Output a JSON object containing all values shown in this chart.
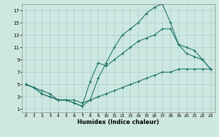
{
  "title": "",
  "xlabel": "Humidex (Indice chaleur)",
  "bg_color": "#cce8e0",
  "grid_color": "#aacccc",
  "line_color": "#1a7068",
  "xlim": [
    -0.5,
    23.5
  ],
  "ylim": [
    0.5,
    18
  ],
  "xticks": [
    0,
    1,
    2,
    3,
    4,
    5,
    6,
    7,
    8,
    9,
    10,
    11,
    12,
    13,
    14,
    15,
    16,
    17,
    18,
    19,
    20,
    21,
    22,
    23
  ],
  "yticks": [
    1,
    3,
    5,
    7,
    9,
    11,
    13,
    15,
    17
  ],
  "line1_x": [
    0,
    1,
    2,
    3,
    4,
    5,
    6,
    7,
    8,
    9,
    10,
    11,
    12,
    13,
    14,
    15,
    16,
    17,
    18,
    19,
    20,
    21,
    22,
    23
  ],
  "line1_y": [
    5,
    4.5,
    4,
    3.5,
    2.5,
    2.5,
    2.5,
    2,
    2.5,
    3,
    3.5,
    4,
    4.5,
    5,
    5.5,
    6,
    6.5,
    7,
    7,
    7.5,
    7.5,
    7.5,
    7.5,
    7.5
  ],
  "line2_x": [
    0,
    1,
    2,
    3,
    4,
    5,
    6,
    7,
    8,
    9,
    10,
    11,
    12,
    13,
    14,
    15,
    16,
    17,
    18,
    19,
    20,
    21,
    22,
    23
  ],
  "line2_y": [
    5,
    4.5,
    3.5,
    3,
    2.5,
    2.5,
    2,
    1.5,
    2.5,
    6,
    8.5,
    11,
    13,
    14,
    15,
    16.5,
    17.5,
    18,
    15,
    11.5,
    10,
    9.5,
    9,
    7.5
  ],
  "line3_x": [
    0,
    1,
    2,
    3,
    4,
    5,
    6,
    7,
    8,
    9,
    10,
    11,
    12,
    13,
    14,
    15,
    16,
    17,
    18,
    19,
    20,
    21,
    22,
    23
  ],
  "line3_y": [
    5,
    4.5,
    3.5,
    3,
    2.5,
    2.5,
    2,
    1.5,
    5.5,
    8.5,
    8,
    9,
    10,
    11,
    12,
    12.5,
    13,
    14,
    14,
    11.5,
    11,
    10.5,
    9,
    7.5
  ]
}
